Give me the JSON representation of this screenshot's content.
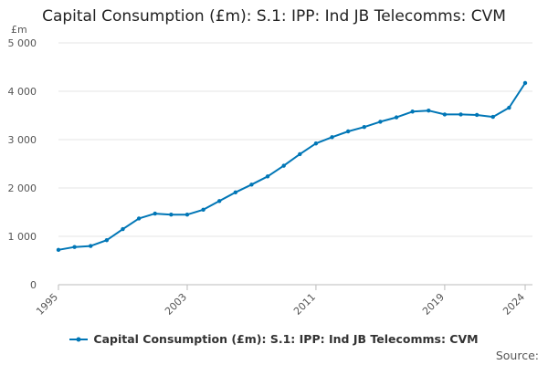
{
  "chart_data": {
    "type": "line",
    "title": "Capital Consumption (£m): S.1: IPP: Ind JB Telecomms: CVM",
    "ylabel": "£m",
    "xlabel": "",
    "ylim": [
      0,
      5000
    ],
    "yticks": [
      0,
      1000,
      2000,
      3000,
      4000,
      5000
    ],
    "ytick_labels": [
      "0",
      "1 000",
      "2 000",
      "3 000",
      "4 000",
      "5 000"
    ],
    "xlim": [
      1995,
      2024
    ],
    "xticks": [
      1995,
      2003,
      2011,
      2019,
      2024
    ],
    "xtick_labels": [
      "1995",
      "2003",
      "2011",
      "2019",
      "2024"
    ],
    "grid": true,
    "series": [
      {
        "name": "Capital Consumption (£m): S.1: IPP: Ind JB Telecomms: CVM",
        "color": "#0076b6",
        "x": [
          1995,
          1996,
          1997,
          1998,
          1999,
          2000,
          2001,
          2002,
          2003,
          2004,
          2005,
          2006,
          2007,
          2008,
          2009,
          2010,
          2011,
          2012,
          2013,
          2014,
          2015,
          2016,
          2017,
          2018,
          2019,
          2020,
          2021,
          2022,
          2023,
          2024
        ],
        "values": [
          720,
          780,
          800,
          920,
          1150,
          1370,
          1470,
          1450,
          1450,
          1550,
          1730,
          1910,
          2070,
          2240,
          2460,
          2700,
          2920,
          3050,
          3170,
          3260,
          3370,
          3460,
          3580,
          3600,
          3520,
          3520,
          3510,
          3470,
          3660,
          4170
        ]
      }
    ]
  },
  "legend": {
    "label": "Capital Consumption (£m): S.1: IPP: Ind JB Telecomms: CVM"
  },
  "footer": {
    "source_label": "Source:"
  }
}
